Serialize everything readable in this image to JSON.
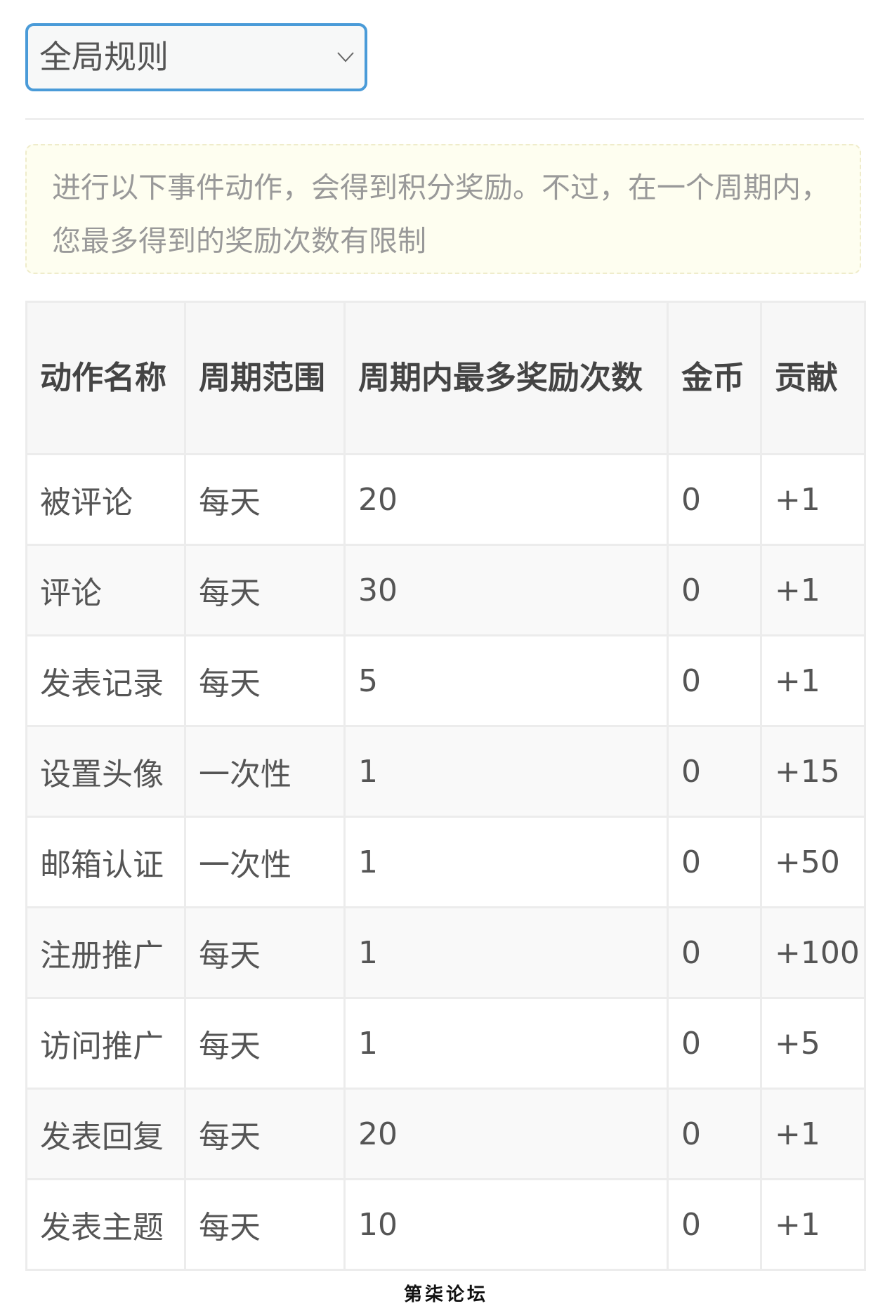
{
  "rule_select": {
    "selected": "全局规则",
    "icon": "chevron-down-icon",
    "border_color": "#4a9bd8"
  },
  "notice": {
    "text": "进行以下事件动作，会得到积分奖励。不过，在一个周期内，您最多得到的奖励次数有限制"
  },
  "table": {
    "headers": [
      "动作名称",
      "周期范围",
      "周期内最多奖励次数",
      "金币",
      "贡献"
    ],
    "rows": [
      [
        "被评论",
        "每天",
        "20",
        "0",
        "+1"
      ],
      [
        "评论",
        "每天",
        "30",
        "0",
        "+1"
      ],
      [
        "发表记录",
        "每天",
        "5",
        "0",
        "+1"
      ],
      [
        "设置头像",
        "一次性",
        "1",
        "0",
        "+15"
      ],
      [
        "邮箱认证",
        "一次性",
        "1",
        "0",
        "+50"
      ],
      [
        "注册推广",
        "每天",
        "1",
        "0",
        "+100"
      ],
      [
        "访问推广",
        "每天",
        "1",
        "0",
        "+5"
      ],
      [
        "发表回复",
        "每天",
        "20",
        "0",
        "+1"
      ],
      [
        "发表主题",
        "每天",
        "10",
        "0",
        "+1"
      ]
    ]
  },
  "watermark": "第柒论坛"
}
